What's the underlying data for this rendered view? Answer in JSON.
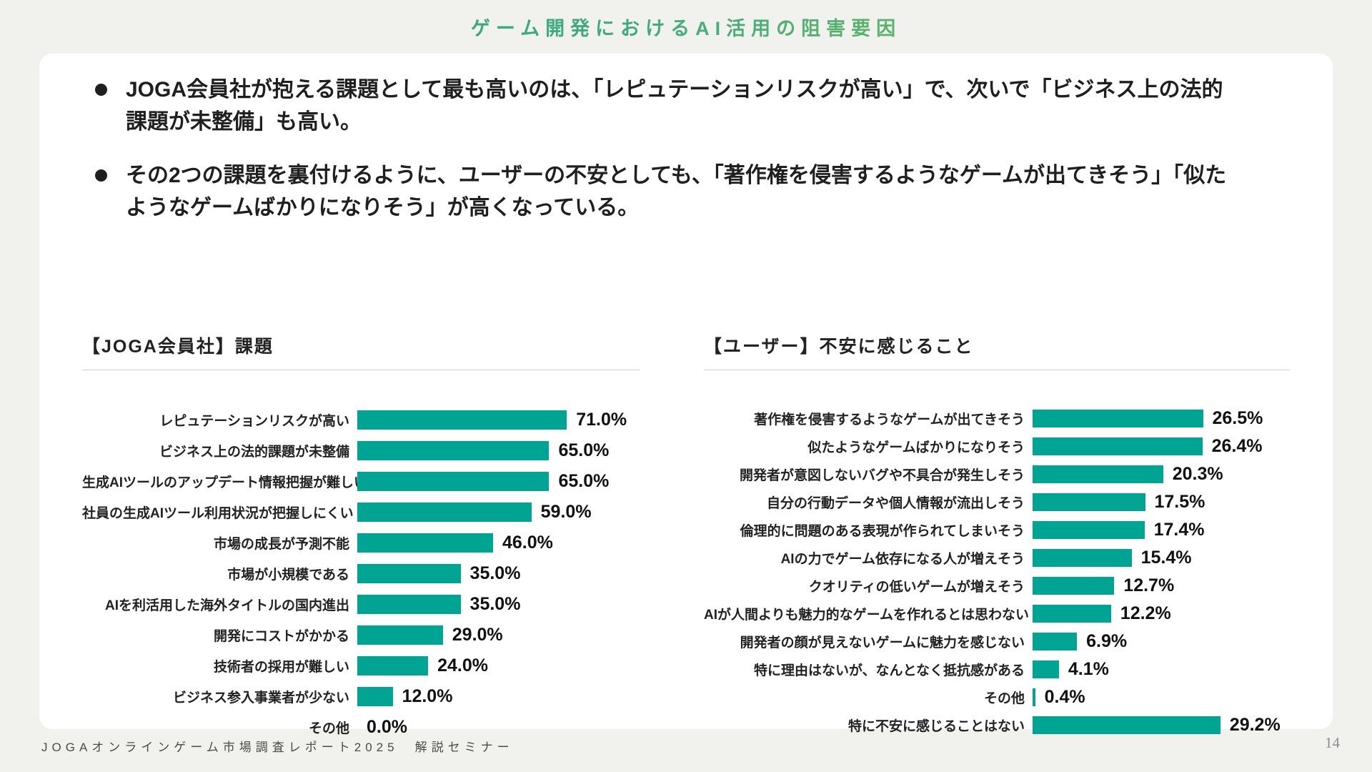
{
  "title": "ゲーム開発におけるAI活用の阻害要因",
  "accent_colors": {
    "title_gradient_start": "#1ea68c",
    "title_gradient_end": "#8fc248",
    "bar_color": "#00A493"
  },
  "bullets": [
    "JOGA会員社が抱える課題として最も高いのは、「レピュテーションリスクが高い」で、次いで「ビジネス上の法的課題が未整備」も高い。",
    "その2つの課題を裏付けるように、ユーザーの不安としても、「著作権を侵害するようなゲームが出てきそう」「似たようなゲームばかりになりそう」が高くなっている。"
  ],
  "chart_data": [
    {
      "type": "bar",
      "orientation": "horizontal",
      "title": "【JOGA会員社】課題",
      "unit": "%",
      "xlim": [
        0,
        80
      ],
      "grid": false,
      "categories": [
        "レピュテーションリスクが高い",
        "ビジネス上の法的課題が未整備",
        "生成AIツールのアップデート情報把握が難しい",
        "社員の生成AIツール利用状況が把握しにくい",
        "市場の成長が予測不能",
        "市場が小規模である",
        "AIを利活用した海外タイトルの国内進出",
        "開発にコストがかかる",
        "技術者の採用が難しい",
        "ビジネス参入事業者が少ない",
        "その他"
      ],
      "values": [
        71.0,
        65.0,
        65.0,
        59.0,
        46.0,
        35.0,
        35.0,
        29.0,
        24.0,
        12.0,
        0.0
      ],
      "value_labels": [
        "71.0%",
        "65.0%",
        "65.0%",
        "59.0%",
        "46.0%",
        "35.0%",
        "35.0%",
        "29.0%",
        "24.0%",
        "12.0%",
        "0.0%"
      ]
    },
    {
      "type": "bar",
      "orientation": "horizontal",
      "title": "【ユーザー】不安に感じること",
      "unit": "%",
      "xlim": [
        0,
        32
      ],
      "grid": false,
      "categories": [
        "著作権を侵害するようなゲームが出てきそう",
        "似たようなゲームばかりになりそう",
        "開発者が意図しないバグや不具合が発生しそう",
        "自分の行動データや個人情報が流出しそう",
        "倫理的に問題のある表現が作られてしまいそう",
        "AIの力でゲーム依存になる人が増えそう",
        "クオリティの低いゲームが増えそう",
        "AIが人間よりも魅力的なゲームを作れるとは思わない",
        "開発者の顔が見えないゲームに魅力を感じない",
        "特に理由はないが、なんとなく抵抗感がある",
        "その他",
        "特に不安に感じることはない"
      ],
      "values": [
        26.5,
        26.4,
        20.3,
        17.5,
        17.4,
        15.4,
        12.7,
        12.2,
        6.9,
        4.1,
        0.4,
        29.2
      ],
      "value_labels": [
        "26.5%",
        "26.4%",
        "20.3%",
        "17.5%",
        "17.4%",
        "15.4%",
        "12.7%",
        "12.2%",
        "6.9%",
        "4.1%",
        "0.4%",
        "29.2%"
      ]
    }
  ],
  "footer": {
    "source": "JOGAオンラインゲーム市場調査レポート2025　解説セミナー",
    "page_number": "14"
  }
}
